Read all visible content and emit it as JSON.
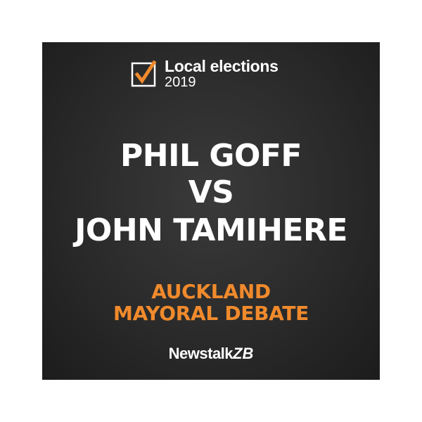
{
  "badge": {
    "title": "Local elections",
    "year": "2019",
    "icon": "checkbox-checked-icon",
    "tick_color": "#f08a2c"
  },
  "headline": {
    "line1": "PHIL GOFF",
    "line2": "VS",
    "line3": "JOHN TAMIHERE"
  },
  "subtitle": {
    "line1": "AUCKLAND",
    "line2": "MAYORAL DEBATE",
    "color": "#f08a2c"
  },
  "brand": {
    "name": "Newstalk",
    "suffix": "ZB"
  }
}
